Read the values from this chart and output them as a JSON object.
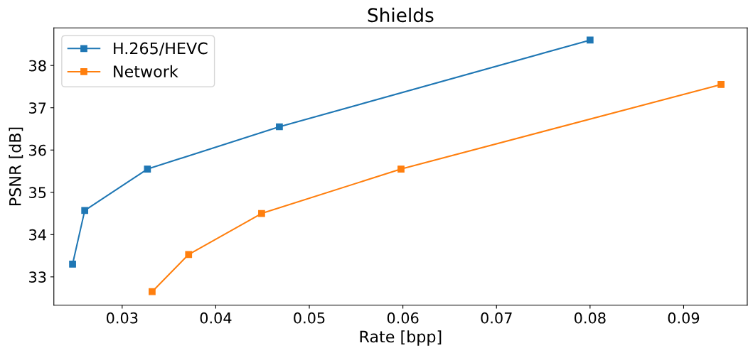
{
  "chart_data": {
    "type": "line",
    "title": "Shields",
    "xlabel": "Rate [bpp]",
    "ylabel": "PSNR [dB]",
    "series": [
      {
        "name": "H.265/HEVC",
        "color": "#1f77b4",
        "x": [
          0.0247,
          0.026,
          0.0327,
          0.0468,
          0.08
        ],
        "values": [
          33.3,
          34.57,
          35.55,
          36.55,
          38.6
        ]
      },
      {
        "name": "Network",
        "color": "#ff7f0e",
        "x": [
          0.0332,
          0.0371,
          0.0449,
          0.0598,
          0.094
        ],
        "values": [
          32.65,
          33.53,
          34.5,
          35.55,
          37.55
        ]
      }
    ],
    "xlim": [
      0.0227,
      0.0968
    ],
    "xticks": [
      0.03,
      0.04,
      0.05,
      0.06,
      0.07,
      0.08,
      0.09
    ],
    "ylim": [
      32.33,
      38.89
    ],
    "yticks": [
      33,
      34,
      35,
      36,
      37,
      38
    ],
    "marker": "square",
    "line_style": "solid",
    "legend": "top left",
    "grid": false
  }
}
